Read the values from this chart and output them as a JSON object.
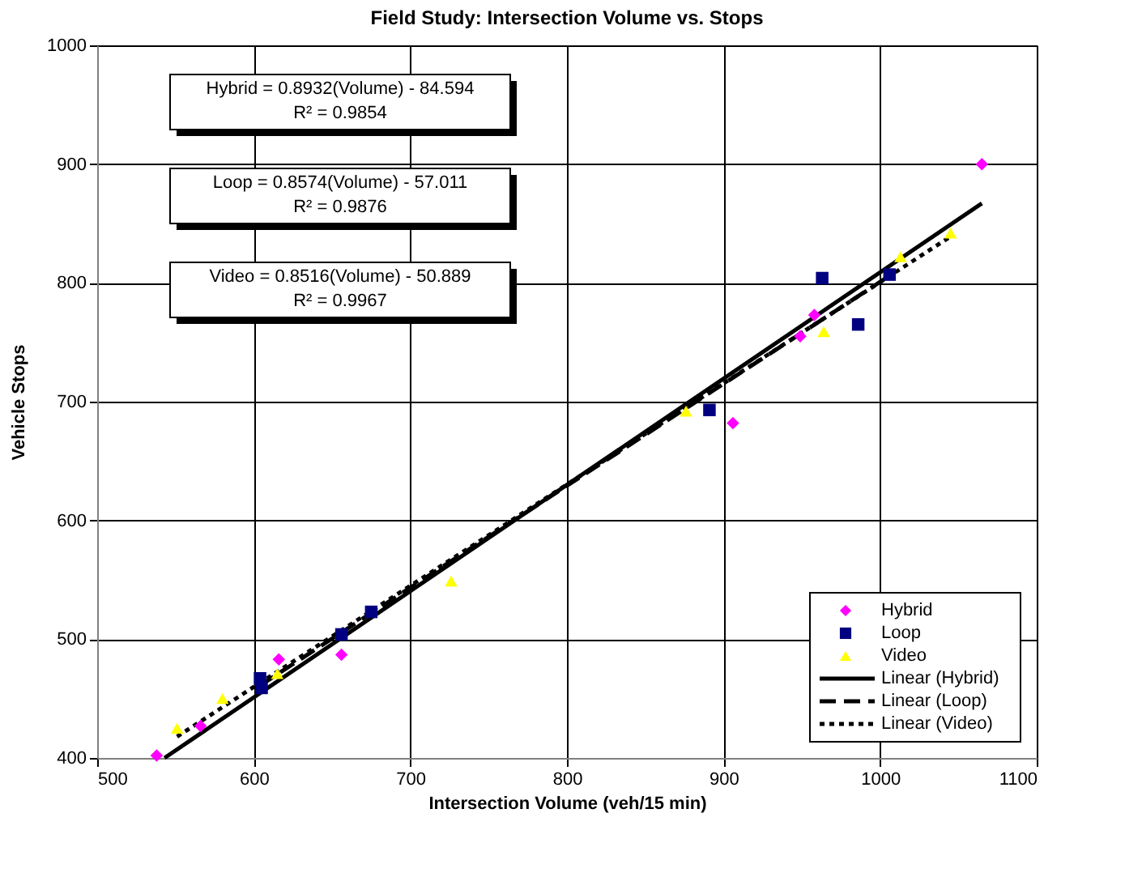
{
  "chart_data": {
    "type": "scatter",
    "title": "Field Study:  Intersection Volume vs. Stops",
    "xlabel": "Intersection Volume (veh/15 min)",
    "ylabel": "Vehicle Stops",
    "xlim": [
      500,
      1100
    ],
    "xticks": [
      500,
      600,
      700,
      800,
      900,
      1000,
      1100
    ],
    "ylim": [
      400,
      1000
    ],
    "yticks": [
      400,
      500,
      600,
      700,
      800,
      900,
      1000
    ],
    "grid": true,
    "legend": "bottom right",
    "series": [
      {
        "name": "Hybrid",
        "marker": "diamond",
        "color": "#ff00ff",
        "x": [
          538,
          566,
          616,
          656,
          906,
          949,
          958,
          1065
        ],
        "values": [
          402,
          427,
          483,
          487,
          682,
          755,
          773,
          900
        ]
      },
      {
        "name": "Loop",
        "marker": "square",
        "color": "#000080",
        "x": [
          604,
          605,
          656,
          675,
          891,
          963,
          986,
          1006
        ],
        "values": [
          467,
          459,
          504,
          523,
          693,
          804,
          765,
          807
        ]
      },
      {
        "name": "Video",
        "marker": "triangle",
        "color": "#ffff00",
        "x": [
          551,
          580,
          615,
          726,
          876,
          964,
          1013,
          1045
        ],
        "values": [
          425,
          450,
          471,
          549,
          692,
          759,
          822,
          842
        ]
      },
      {
        "name": "Linear (Hybrid)",
        "type": "line",
        "line_style": "solid",
        "color": "#000000",
        "x": [
          543,
          1065
        ],
        "values": [
          400,
          867
        ]
      },
      {
        "name": "Linear (Loop)",
        "type": "line",
        "line_style": "dashed",
        "color": "#000000",
        "x": [
          604,
          1006
        ],
        "values": [
          461,
          806
        ]
      },
      {
        "name": "Linear (Video)",
        "type": "line",
        "line_style": "dotted",
        "color": "#000000",
        "x": [
          551,
          1045
        ],
        "values": [
          418,
          839
        ]
      }
    ],
    "annotations": [
      "Hybrid = 0.8932(Volume) - 84.594\nR² = 0.9854",
      "Loop = 0.8574(Volume) - 57.011\nR² = 0.9876",
      "Video = 0.8516(Volume) - 50.889\nR² = 0.9967"
    ]
  }
}
